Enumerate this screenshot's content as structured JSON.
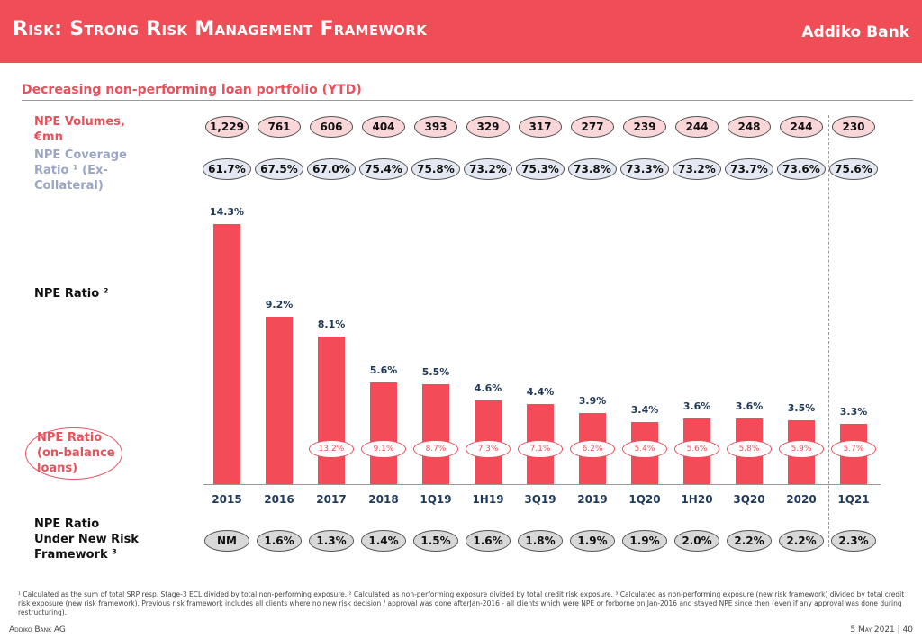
{
  "header": {
    "title": "Risk: Strong Risk Management Framework",
    "logo": "Addiko Bank"
  },
  "subtitle": "Decreasing non-performing loan portfolio (YTD)",
  "labels": {
    "volumes": "NPE Volumes, €mn",
    "coverage": "NPE Coverage Ratio ¹ (Ex-Collateral)",
    "npe_ratio": "NPE Ratio ²",
    "on_balance": "NPE Ratio (on-balance loans)",
    "new_framework": "NPE Ratio Under New Risk Framework ³"
  },
  "chart_data": {
    "type": "bar",
    "title": "NPE Ratio",
    "categories": [
      "2015",
      "2016",
      "2017",
      "2018",
      "1Q19",
      "1H19",
      "3Q19",
      "2019",
      "1Q20",
      "1H20",
      "3Q20",
      "2020",
      "1Q21"
    ],
    "values": [
      14.3,
      9.2,
      8.1,
      5.6,
      5.5,
      4.6,
      4.4,
      3.9,
      3.4,
      3.6,
      3.6,
      3.5,
      3.3
    ],
    "value_labels": [
      "14.3%",
      "9.2%",
      "8.1%",
      "5.6%",
      "5.5%",
      "4.6%",
      "4.4%",
      "3.9%",
      "3.4%",
      "3.6%",
      "3.6%",
      "3.5%",
      "3.3%"
    ],
    "ylim": [
      0,
      15
    ],
    "npe_volumes": [
      "1,229",
      "761",
      "606",
      "404",
      "393",
      "329",
      "317",
      "277",
      "239",
      "244",
      "248",
      "244",
      "230"
    ],
    "coverage": [
      "61.7%",
      "67.5%",
      "67.0%",
      "75.4%",
      "75.8%",
      "73.2%",
      "75.3%",
      "73.8%",
      "73.3%",
      "73.2%",
      "73.7%",
      "73.6%",
      "75.6%"
    ],
    "on_balance": [
      null,
      null,
      "13.2%",
      "9.1%",
      "8.7%",
      "7.3%",
      "7.1%",
      "6.2%",
      "5.4%",
      "5.6%",
      "5.8%",
      "5.9%",
      "5.7%"
    ],
    "new_framework": [
      "NM",
      "1.6%",
      "1.3%",
      "1.4%",
      "1.5%",
      "1.6%",
      "1.8%",
      "1.9%",
      "1.9%",
      "2.0%",
      "2.2%",
      "2.2%",
      "2.3%"
    ]
  },
  "footnote": "¹ Calculated as the sum of total SRP resp. Stage-3 ECL divided by total non-performing exposure.   ² Calculated as non-performing exposure divided by total credit risk exposure.   ³ Calculated as non-performing exposure (new risk framework) divided by total credit risk exposure (new risk framework). Previous risk framework includes all clients where no new risk decision / approval was done afterJan-2016 - all clients which were NPE or forborne on Jan-2016 and stayed NPE since then (even if any approval was done during restructuring).",
  "footer": {
    "left": "Addiko Bank AG",
    "right": "5 May 2021 | 40"
  }
}
